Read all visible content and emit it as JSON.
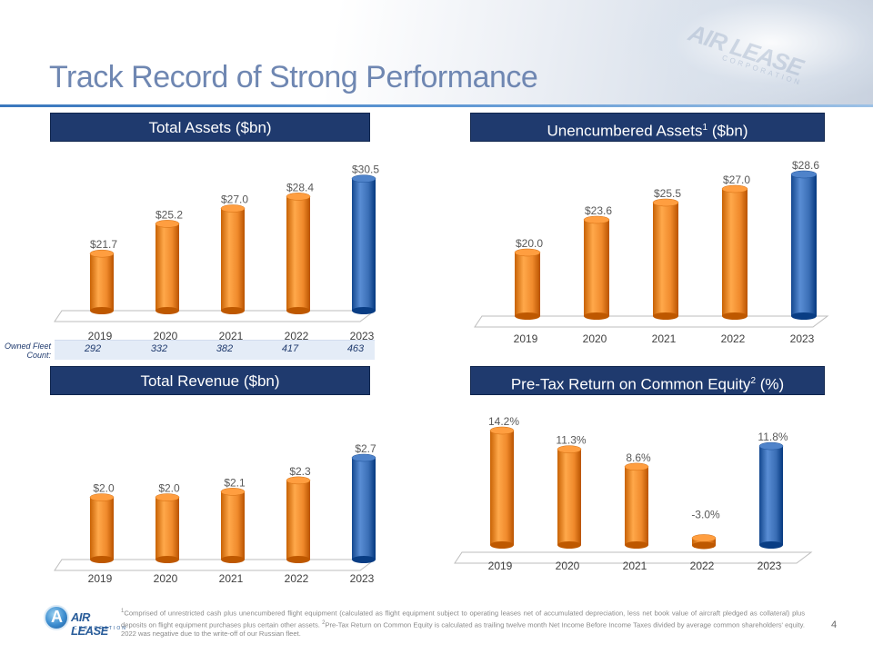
{
  "title": "Track Record of Strong Performance",
  "header_logo": {
    "name": "AIR LEASE",
    "sub": "CORPORATION"
  },
  "colors": {
    "orange": "#f08a2c",
    "blue": "#3b6fb6",
    "navy": "#1f3a6e"
  },
  "fleet": {
    "label_line1": "Owned Fleet",
    "label_line2": "Count:",
    "values": [
      "292",
      "332",
      "382",
      "417",
      "463"
    ]
  },
  "chart_data": [
    {
      "id": "total-assets",
      "type": "bar",
      "title": "Total Assets ($bn)",
      "title_sup": "",
      "title_suffix": "",
      "categories": [
        "2019",
        "2020",
        "2021",
        "2022",
        "2023"
      ],
      "values": [
        21.7,
        25.2,
        27.0,
        28.4,
        30.5
      ],
      "labels": [
        "$21.7",
        "$25.2",
        "$27.0",
        "$28.4",
        "$30.5"
      ],
      "ylim": [
        15,
        31
      ],
      "highlight": "2023"
    },
    {
      "id": "unencumbered-assets",
      "type": "bar",
      "title": "Unencumbered Assets",
      "title_sup": "1",
      "title_suffix": " ($bn)",
      "categories": [
        "2019",
        "2020",
        "2021",
        "2022",
        "2023"
      ],
      "values": [
        20.0,
        23.6,
        25.5,
        27.0,
        28.6
      ],
      "labels": [
        "$20.0",
        "$23.6",
        "$25.5",
        "$27.0",
        "$28.6"
      ],
      "ylim": [
        13,
        29
      ],
      "highlight": "2023"
    },
    {
      "id": "total-revenue",
      "type": "bar",
      "title": "Total Revenue ($bn)",
      "title_sup": "",
      "title_suffix": "",
      "categories": [
        "2019",
        "2020",
        "2021",
        "2022",
        "2023"
      ],
      "values": [
        2.0,
        2.0,
        2.1,
        2.3,
        2.7
      ],
      "labels": [
        "$2.0",
        "$2.0",
        "$2.1",
        "$2.3",
        "$2.7"
      ],
      "ylim": [
        0.9,
        2.7
      ],
      "highlight": "2023"
    },
    {
      "id": "pretax-return",
      "type": "bar",
      "title": "Pre-Tax Return on Common Equity",
      "title_sup": "2",
      "title_suffix": " (%)",
      "categories": [
        "2019",
        "2020",
        "2021",
        "2022",
        "2023"
      ],
      "values": [
        14.2,
        11.3,
        8.6,
        -3.0,
        11.8
      ],
      "labels": [
        "14.2%",
        "11.3%",
        "8.6%",
        "-3.0%",
        "11.8%"
      ],
      "ylim": [
        -3.5,
        14.2
      ],
      "highlight": "2023"
    }
  ],
  "footer": {
    "logo_letter": "A",
    "logo_name": "AIR LEASE",
    "logo_sub": "CORPORATION",
    "note1_num": "1",
    "note1": "Comprised of unrestricted cash plus unencumbered flight equipment (calculated as flight equipment subject to operating leases net of accumulated depreciation, less net book value of aircraft pledged as collateral) plus deposits on flight equipment purchases plus certain other assets. ",
    "note2_num": "2",
    "note2": "Pre-Tax Return on Common Equity is calculated as trailing twelve month Net Income Before Income Taxes divided by average common shareholders' equity. 2022 was negative due to the write-off of our Russian fleet.",
    "page": "4"
  }
}
